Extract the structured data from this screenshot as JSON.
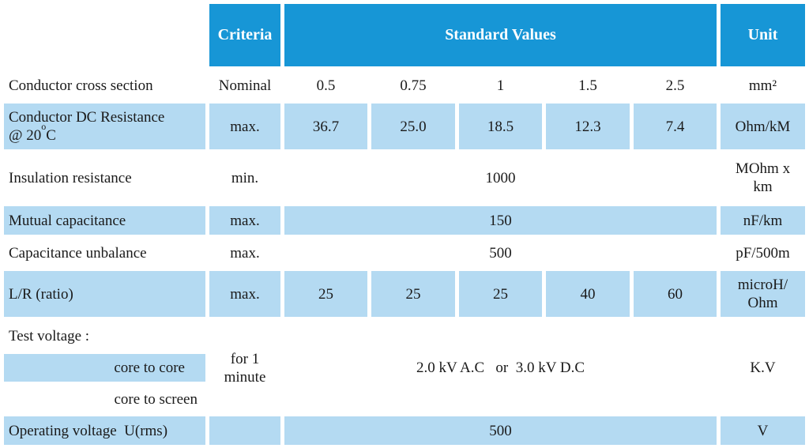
{
  "header": {
    "criteria": "Criteria",
    "standard_values": "Standard Values",
    "unit": "Unit"
  },
  "rows": {
    "cross_section": {
      "label": "Conductor cross section",
      "criteria": "Nominal",
      "values": [
        "0.5",
        "0.75",
        "1",
        "1.5",
        "2.5"
      ],
      "unit": "mm²"
    },
    "dc_resistance": {
      "label_line1": "Conductor DC Resistance",
      "label_line2_prefix": "@ 20",
      "label_sup": "o",
      "label_suffix": "C",
      "criteria": "max.",
      "values": [
        "36.7",
        "25.0",
        "18.5",
        "12.3",
        "7.4"
      ],
      "unit": "Ohm/kM"
    },
    "insulation": {
      "label": "Insulation resistance",
      "criteria": "min.",
      "value": "1000",
      "unit_line1": "MOhm x",
      "unit_line2": "km"
    },
    "mutual_cap": {
      "label": "Mutual capacitance",
      "criteria": "max.",
      "value": "150",
      "unit": "nF/km"
    },
    "cap_unbalance": {
      "label": "Capacitance unbalance",
      "criteria": "max.",
      "value": "500",
      "unit": "pF/500m"
    },
    "lr_ratio": {
      "label": "L/R (ratio)",
      "criteria": "max.",
      "values": [
        "25",
        "25",
        "25",
        "40",
        "60"
      ],
      "unit_line1": "microH/",
      "unit_line2": "Ohm"
    },
    "test_voltage": {
      "label": "Test voltage :",
      "sub1": "core to core",
      "sub2": "core to screen",
      "criteria_line1": "for 1",
      "criteria_line2": "minute",
      "value": "2.0 kV A.C   or  3.0 kV D.C",
      "unit": "K.V"
    },
    "operating_voltage": {
      "label": "Operating voltage  U(rms)",
      "value": "500",
      "unit": "V"
    }
  },
  "colors": {
    "header": "#1796d6",
    "row_fill": "#b4daf2"
  }
}
